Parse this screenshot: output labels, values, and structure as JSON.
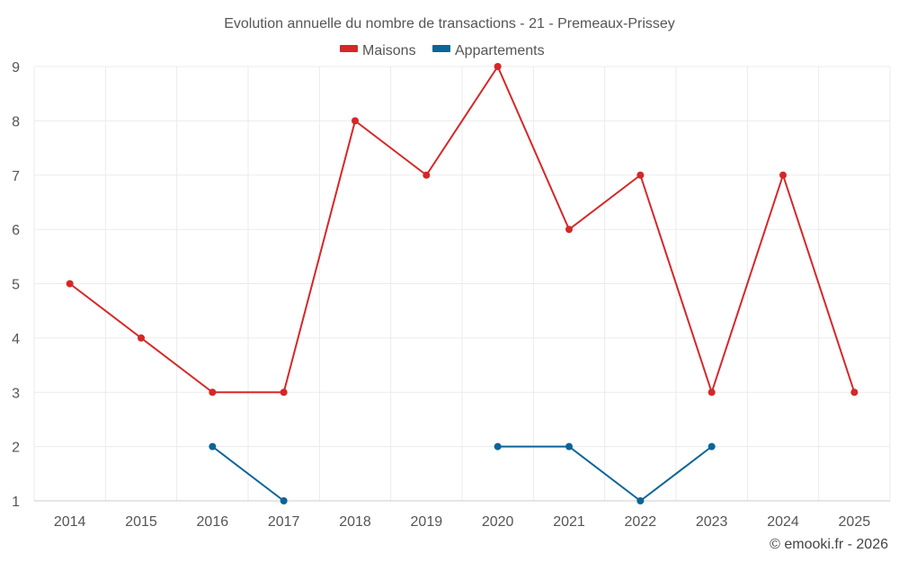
{
  "chart_data": {
    "type": "line",
    "title": "Evolution annuelle du nombre de transactions - 21 - Premeaux-Prissey",
    "categories": [
      "2014",
      "2015",
      "2016",
      "2017",
      "2018",
      "2019",
      "2020",
      "2021",
      "2022",
      "2023",
      "2024",
      "2025"
    ],
    "series": [
      {
        "name": "Maisons",
        "color": "#d62728",
        "values": [
          5,
          4,
          3,
          3,
          8,
          7,
          9,
          6,
          7,
          3,
          7,
          3
        ]
      },
      {
        "name": "Appartements",
        "color": "#0b6596",
        "values": [
          null,
          null,
          2,
          1,
          null,
          null,
          2,
          2,
          1,
          2,
          null,
          null
        ]
      }
    ],
    "xlabel": "",
    "ylabel": "",
    "ylim": [
      1,
      9
    ],
    "yticks": [
      1,
      2,
      3,
      4,
      5,
      6,
      7,
      8,
      9
    ],
    "grid": true,
    "legend_position": "top-center"
  },
  "credit": "© emooki.fr - 2026"
}
